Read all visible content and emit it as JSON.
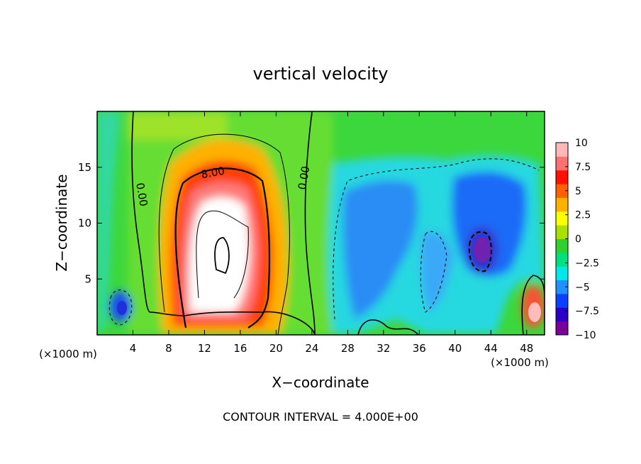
{
  "chart_data": {
    "type": "heatmap",
    "title": "vertical velocity",
    "xlabel": "X−coordinate",
    "ylabel": "Z−coordinate",
    "x_unit_left": "(×1000 m)",
    "x_unit_right": "(×1000 m)",
    "footer": "CONTOUR INTERVAL = 4.000E+00",
    "xlim": [
      0,
      50
    ],
    "ylim": [
      0,
      20
    ],
    "x_ticks": [
      4,
      8,
      12,
      16,
      20,
      24,
      28,
      32,
      36,
      40,
      44,
      48
    ],
    "x_tick_labels": [
      "4",
      "8",
      "12",
      "16",
      "20",
      "24",
      "28",
      "32",
      "36",
      "40",
      "44",
      "48"
    ],
    "y_ticks": [
      5,
      10,
      15
    ],
    "y_tick_labels": [
      "5",
      "10",
      "15"
    ],
    "colorbar": {
      "range": [
        -10,
        10
      ],
      "ticks": [
        10,
        7.5,
        5,
        2.5,
        0,
        -2.5,
        -5,
        -7.5,
        -10
      ],
      "tick_labels": [
        "10",
        "7.5",
        "5",
        "2.5",
        "0",
        "−2.5",
        "−5",
        "−7.5",
        "−10"
      ],
      "colors": [
        "#7a0099",
        "#2a00c8",
        "#0a40ff",
        "#1e90ff",
        "#00e8e8",
        "#00e080",
        "#30d030",
        "#a8e000",
        "#ffff00",
        "#ffb000",
        "#ff6000",
        "#ff1000",
        "#ff7070",
        "#ffb8b8"
      ]
    },
    "contour_labels": [
      {
        "text": "8.00",
        "x": 13,
        "z": 14.2
      },
      {
        "text": "0.00",
        "x": 4.6,
        "z": 12.5
      },
      {
        "text": "0.00",
        "x": 23.5,
        "z": 14.0
      }
    ],
    "features": [
      {
        "kind": "updraft",
        "x": 14,
        "z": 10,
        "peak": 14
      },
      {
        "kind": "downdraft",
        "x": 43,
        "z": 7.5,
        "peak": -10
      },
      {
        "kind": "downdraft",
        "x": 3,
        "z": 2.5,
        "peak": -7.5
      },
      {
        "kind": "updraft",
        "x": 48.8,
        "z": 2.2,
        "peak": 10
      }
    ],
    "grid": false,
    "legend": "colorbar-right"
  }
}
